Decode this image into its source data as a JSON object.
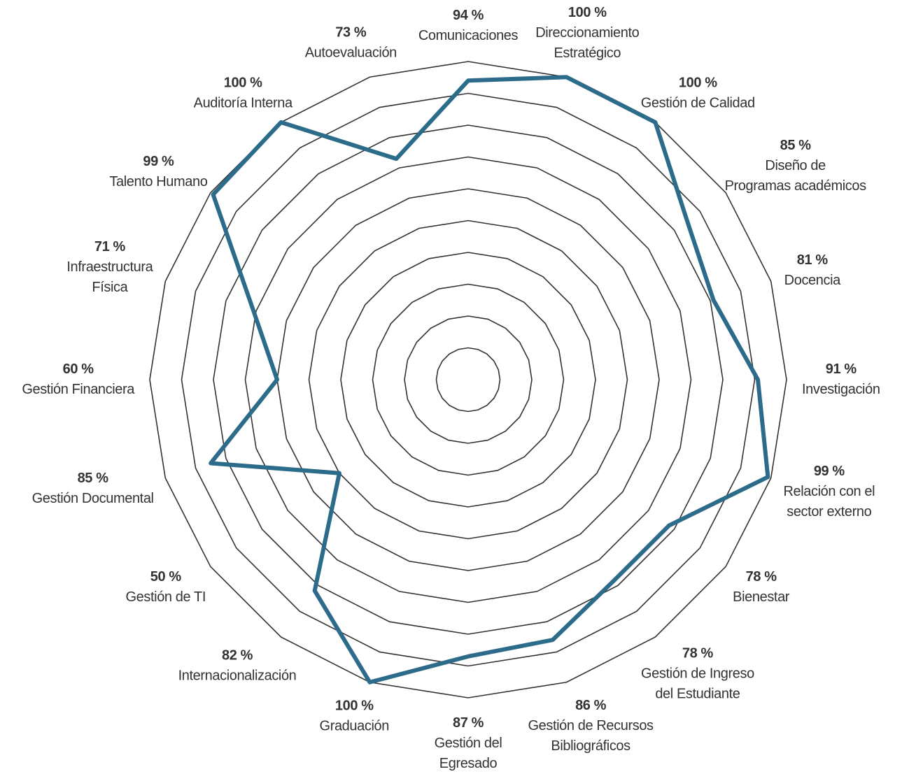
{
  "chart_data": {
    "type": "radar",
    "categories": [
      "Comunicaciones",
      "Direccionamiento\nEstratégico",
      "Gestión de Calidad",
      "Diseño de\nProgramas académicos",
      "Docencia",
      "Investigación",
      "Relación con el\nsector externo",
      "Bienestar",
      "Gestión de Ingreso\ndel Estudiante",
      "Gestión de Recursos\nBibliográficos",
      "Gestión del\nEgresado",
      "Graduación",
      "Internacionalización",
      "Gestión de TI",
      "Gestión Documental",
      "Gestión Financiera",
      "Infraestructura\nFísica",
      "Talento Humano",
      "Auditoría Interna",
      "Autoevaluación"
    ],
    "values": [
      94,
      100,
      100,
      85,
      81,
      91,
      99,
      78,
      78,
      86,
      87,
      100,
      82,
      50,
      85,
      60,
      71,
      99,
      100,
      73
    ],
    "value_labels": [
      "94 %",
      "100 %",
      "100 %",
      "85 %",
      "81 %",
      "91 %",
      "99 %",
      "78 %",
      "78 %",
      "86 %",
      "87 %",
      "100 %",
      "82 %",
      "50 %",
      "85 %",
      "60 %",
      "71 %",
      "99 %",
      "100 %",
      "73 %"
    ],
    "color": "#2c6c8a",
    "ylim": [
      0,
      100
    ],
    "yticks": [
      10,
      20,
      30,
      40,
      50,
      60,
      70,
      80,
      90,
      100
    ],
    "grid": true
  }
}
